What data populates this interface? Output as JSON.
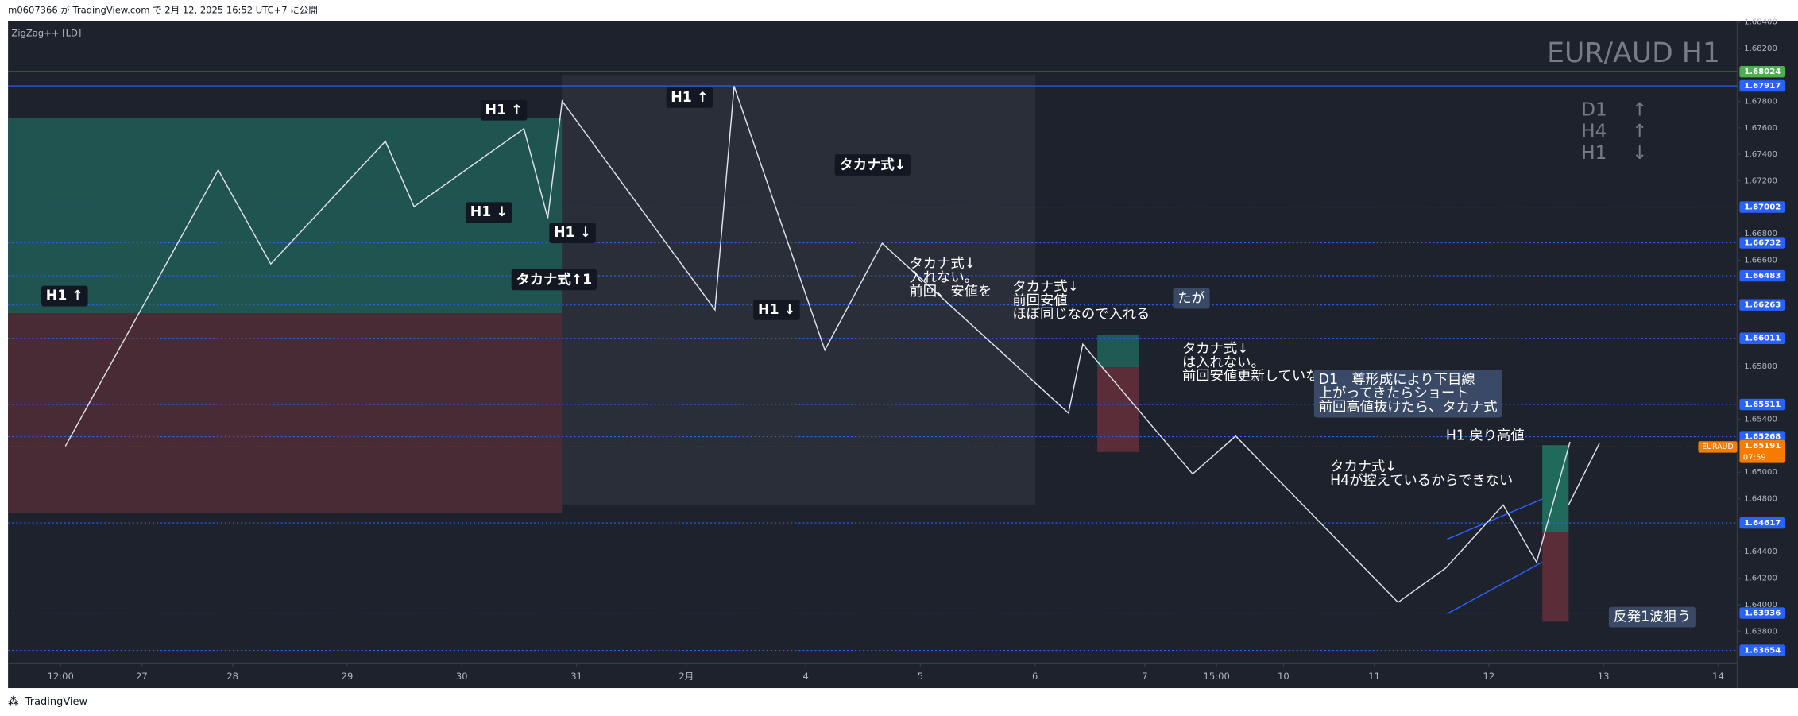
{
  "header": {
    "publisher": "m0607366 が TradingView.com で 2月 12, 2025 16:52 UTC+7 に公開"
  },
  "footer": {
    "brand": "TradingView"
  },
  "chart_data": {
    "type": "line",
    "title": "EUR/AUD H1",
    "indicator": "ZigZag++ [LD]",
    "color": "#e0e3eb",
    "x": [
      12,
      44,
      55,
      79,
      85,
      108,
      113,
      116,
      148,
      152,
      171,
      183,
      222,
      225,
      248,
      257,
      291,
      301,
      313,
      320,
      327
    ],
    "values": [
      1.65196,
      1.67282,
      1.66572,
      1.67499,
      1.67005,
      1.67594,
      1.66918,
      1.67802,
      1.66226,
      1.67914,
      1.65922,
      1.66728,
      1.65446,
      1.65966,
      1.64987,
      1.65273,
      1.64017,
      1.64277,
      1.64753,
      1.6432,
      1.6523
    ],
    "xlim": [
      0,
      362
    ],
    "xticks": [
      {
        "value": 11,
        "label": "12:00"
      },
      {
        "value": 28,
        "label": "27"
      },
      {
        "value": 47,
        "label": "28"
      },
      {
        "value": 71,
        "label": "29"
      },
      {
        "value": 95,
        "label": "30"
      },
      {
        "value": 119,
        "label": "31"
      },
      {
        "value": 142,
        "label": "2月"
      },
      {
        "value": 167,
        "label": "4"
      },
      {
        "value": 191,
        "label": "5"
      },
      {
        "value": 215,
        "label": "6"
      },
      {
        "value": 238,
        "label": "7"
      },
      {
        "value": 253,
        "label": "15:00"
      },
      {
        "value": 267,
        "label": "10"
      },
      {
        "value": 286,
        "label": "11"
      },
      {
        "value": 310,
        "label": "12"
      },
      {
        "value": 334,
        "label": "13"
      },
      {
        "value": 358,
        "label": "14"
      }
    ],
    "ylim": [
      1.63386,
      1.68408
    ],
    "yticks": [
      {
        "value": 1.684,
        "label": "1.68400"
      },
      {
        "value": 1.682,
        "label": "1.68200"
      },
      {
        "value": 1.678,
        "label": "1.67800"
      },
      {
        "value": 1.676,
        "label": "1.67600"
      },
      {
        "value": 1.674,
        "label": "1.67400"
      },
      {
        "value": 1.672,
        "label": "1.67200"
      },
      {
        "value": 1.668,
        "label": "1.66800"
      },
      {
        "value": 1.666,
        "label": "1.66600"
      },
      {
        "value": 1.658,
        "label": "1.65800"
      },
      {
        "value": 1.654,
        "label": "1.65400"
      },
      {
        "value": 1.65,
        "label": "1.65000"
      },
      {
        "value": 1.648,
        "label": "1.64800"
      },
      {
        "value": 1.644,
        "label": "1.64400"
      },
      {
        "value": 1.642,
        "label": "1.64200"
      },
      {
        "value": 1.64,
        "label": "1.64000"
      },
      {
        "value": 1.638,
        "label": "1.63800"
      }
    ],
    "levels": [
      {
        "value": 1.68024,
        "color": "#4caf50"
      },
      {
        "value": 1.67917,
        "color": "#2962ff"
      },
      {
        "value": 1.67002,
        "color": "#2962ff"
      },
      {
        "value": 1.66732,
        "color": "#2962ff"
      },
      {
        "value": 1.66483,
        "color": "#2962ff"
      },
      {
        "value": 1.66263,
        "color": "#2962ff"
      },
      {
        "value": 1.66011,
        "color": "#2962ff"
      },
      {
        "value": 1.65511,
        "color": "#2962ff"
      },
      {
        "value": 1.65268,
        "color": "#2962ff"
      },
      {
        "value": 1.64617,
        "color": "#2962ff"
      },
      {
        "value": 1.63936,
        "color": "#2962ff"
      },
      {
        "value": 1.63654,
        "color": "#2962ff"
      }
    ],
    "last": {
      "symbol": "EURAUD",
      "value": 1.65191,
      "countdown": "07:59",
      "color": "#f57c00"
    },
    "trend": [
      {
        "tf": "D1",
        "dir": "↑"
      },
      {
        "tf": "H4",
        "dir": "↑"
      },
      {
        "tf": "H1",
        "dir": "↓"
      }
    ],
    "annotations": [
      {
        "lines": [
          "H1 ↑"
        ]
      },
      {
        "lines": [
          "H1 ↑"
        ]
      },
      {
        "lines": [
          "H1 ↓"
        ]
      },
      {
        "lines": [
          "H1 ↓"
        ]
      },
      {
        "lines": [
          "タカナ式↑1"
        ]
      },
      {
        "lines": [
          "H1 ↑"
        ]
      },
      {
        "lines": [
          "H1 ↓"
        ]
      },
      {
        "lines": [
          "タカナ式↓"
        ]
      },
      {
        "lines": [
          "タカナ式↓",
          "入れない。",
          "前回、安値を"
        ]
      },
      {
        "lines": [
          "たが"
        ]
      },
      {
        "lines": [
          "タカナ式↓",
          "前回安値",
          "ほぼ同じなので入れる"
        ]
      },
      {
        "lines": [
          "タカナ式↓",
          "は入れない。",
          "前回安値更新していない"
        ]
      },
      {
        "lines": [
          "D1　尊形成により下目線",
          "上がってきたらショート",
          "前回高値抜けたら、タカナ式"
        ]
      },
      {
        "lines": [
          "H1 戻り高値"
        ]
      },
      {
        "lines": [
          "タカナ式↓",
          "H4が控えているからできない"
        ]
      },
      {
        "lines": [
          "反発1波狙う"
        ]
      }
    ]
  }
}
